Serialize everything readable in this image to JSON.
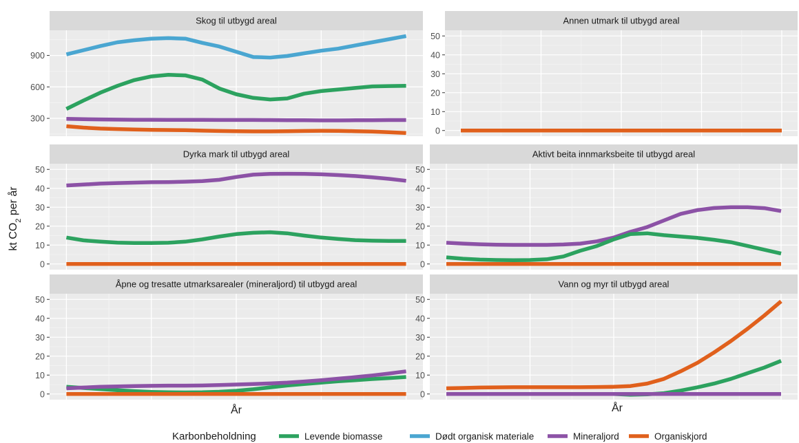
{
  "chart_data": {
    "type": "line",
    "ylabel_prefix": "kt CO",
    "ylabel_sub": "2",
    "ylabel_suffix": " per år",
    "xlabel": "År",
    "legend": {
      "title": "Karbonbeholdning",
      "position": "bottom",
      "entries": [
        {
          "name": "Levende biomasse",
          "color": "#2ca25f"
        },
        {
          "name": "Dødt organisk materiale",
          "color": "#4aa6d1"
        },
        {
          "name": "Mineraljord",
          "color": "#8c52a6"
        },
        {
          "name": "Organiskjord",
          "color": "#e0601c"
        }
      ]
    },
    "x": [
      0,
      1,
      2,
      3,
      4,
      5,
      6,
      7,
      8,
      9,
      10,
      11,
      12,
      13,
      14,
      15,
      16,
      17,
      18,
      19,
      20
    ],
    "panels": [
      {
        "title": "Skog til utbygd areal",
        "ylim": [
          130,
          1140
        ],
        "yticks": [
          300,
          600,
          900
        ],
        "series": [
          {
            "name": "Dødt organisk materiale",
            "values": [
              910,
              950,
              990,
              1025,
              1045,
              1060,
              1065,
              1060,
              1020,
              985,
              935,
              885,
              880,
              895,
              920,
              945,
              965,
              995,
              1025,
              1055,
              1085
            ]
          },
          {
            "name": "Levende biomasse",
            "values": [
              390,
              470,
              545,
              610,
              665,
              700,
              715,
              710,
              670,
              585,
              530,
              495,
              480,
              490,
              535,
              560,
              575,
              590,
              605,
              608,
              610
            ]
          },
          {
            "name": "Mineraljord",
            "values": [
              295,
              292,
              290,
              288,
              287,
              287,
              286,
              286,
              286,
              285,
              285,
              285,
              284,
              283,
              282,
              281,
              281,
              282,
              283,
              284,
              284
            ]
          },
          {
            "name": "Organiskjord",
            "values": [
              225,
              212,
              203,
              198,
              194,
              191,
              189,
              187,
              183,
              180,
              177,
              176,
              176,
              178,
              180,
              182,
              181,
              178,
              174,
              168,
              160
            ]
          }
        ]
      },
      {
        "title": "Annen utmark til utbygd areal",
        "ylim": [
          -3,
          53
        ],
        "yticks": [
          0,
          10,
          20,
          30,
          40,
          50
        ],
        "series": [
          {
            "name": "Organiskjord",
            "values": [
              0,
              0,
              0,
              0,
              0,
              0,
              0,
              0,
              0,
              0,
              0,
              0,
              0,
              0,
              0,
              0,
              0,
              0,
              0,
              0,
              0
            ]
          }
        ]
      },
      {
        "title": "Dyrka mark til utbygd areal",
        "ylim": [
          -3,
          53
        ],
        "yticks": [
          0,
          10,
          20,
          30,
          40,
          50
        ],
        "series": [
          {
            "name": "Mineraljord",
            "values": [
              41.5,
              42,
              42.5,
              42.8,
              43,
              43.2,
              43.3,
              43.5,
              43.8,
              44.5,
              46,
              47.2,
              47.6,
              47.7,
              47.6,
              47.4,
              47,
              46.5,
              45.8,
              45,
              44
            ]
          },
          {
            "name": "Levende biomasse",
            "values": [
              14,
              12.5,
              11.8,
              11.3,
              11.1,
              11.1,
              11.2,
              11.8,
              13,
              14.5,
              15.8,
              16.5,
              16.8,
              16.2,
              15,
              14,
              13.2,
              12.6,
              12.3,
              12.2,
              12.2
            ]
          },
          {
            "name": "Organiskjord",
            "values": [
              0,
              0,
              0,
              0,
              0,
              0,
              0,
              0,
              0,
              0,
              0,
              0,
              0,
              0,
              0,
              0,
              0,
              0,
              0,
              0,
              0
            ]
          }
        ]
      },
      {
        "title": "Aktivt beita innmarksbeite til utbygd areal",
        "ylim": [
          -3,
          53
        ],
        "yticks": [
          0,
          10,
          20,
          30,
          40,
          50
        ],
        "series": [
          {
            "name": "Mineraljord",
            "values": [
              11.2,
              10.8,
              10.4,
              10.2,
              10.1,
              10.1,
              10.1,
              10.3,
              10.8,
              12,
              14,
              17,
              19.5,
              23,
              26.5,
              28.5,
              29.6,
              30,
              30,
              29.5,
              28
            ]
          },
          {
            "name": "Levende biomasse",
            "values": [
              3.5,
              2.8,
              2.3,
              2.1,
              2,
              2.1,
              2.5,
              4,
              7,
              9.5,
              13,
              15.8,
              16.2,
              15.2,
              14.5,
              13.8,
              12.8,
              11.5,
              9.5,
              7.5,
              5.5
            ]
          },
          {
            "name": "Organiskjord",
            "values": [
              0,
              0,
              0,
              0,
              0,
              0,
              0,
              0,
              0,
              0,
              0,
              0,
              0,
              0,
              0,
              0,
              0,
              0,
              0,
              0,
              0
            ]
          }
        ]
      },
      {
        "title": "Åpne og tresatte utmarksarealer (mineraljord) til utbygd areal",
        "ylim": [
          -3,
          53
        ],
        "yticks": [
          0,
          10,
          20,
          30,
          40,
          50
        ],
        "series": [
          {
            "name": "Levende biomasse",
            "values": [
              3.8,
              3.2,
              2.6,
              2,
              1.5,
              1.1,
              0.9,
              0.8,
              0.9,
              1.2,
              1.7,
              2.5,
              3.5,
              4.5,
              5.3,
              6,
              6.7,
              7.3,
              7.9,
              8.4,
              9
            ]
          },
          {
            "name": "Mineraljord",
            "values": [
              3,
              3.4,
              3.8,
              4,
              4.2,
              4.3,
              4.4,
              4.4,
              4.5,
              4.7,
              5,
              5.3,
              5.6,
              6,
              6.6,
              7.3,
              8.1,
              8.9,
              9.8,
              10.8,
              12
            ]
          },
          {
            "name": "Organiskjord",
            "values": [
              0,
              0,
              0,
              0,
              0,
              0,
              0,
              0,
              0,
              0,
              0,
              0,
              0,
              0,
              0,
              0,
              0,
              0,
              0,
              0,
              0
            ]
          }
        ]
      },
      {
        "title": "Vann og myr til utbygd areal",
        "ylim": [
          -3,
          53
        ],
        "yticks": [
          0,
          10,
          20,
          30,
          40,
          50
        ],
        "series": [
          {
            "name": "Organiskjord",
            "values": [
              3,
              3.2,
              3.4,
              3.5,
              3.6,
              3.6,
              3.6,
              3.6,
              3.6,
              3.7,
              3.8,
              4.2,
              5.5,
              8,
              12,
              16.5,
              22,
              28,
              34.5,
              41.5,
              49
            ]
          },
          {
            "name": "Levende biomasse",
            "values": [
              0,
              0,
              0,
              0,
              0,
              0,
              0,
              0,
              0,
              0,
              0,
              -0.4,
              -0.2,
              0.4,
              1.8,
              3.5,
              5.5,
              8,
              11,
              14,
              17.5
            ]
          },
          {
            "name": "Mineraljord",
            "values": [
              0,
              0,
              0,
              0,
              0,
              0,
              0,
              0,
              0,
              0,
              0,
              0,
              0,
              0,
              0,
              0,
              0,
              0,
              0,
              0,
              0
            ]
          }
        ]
      }
    ]
  }
}
